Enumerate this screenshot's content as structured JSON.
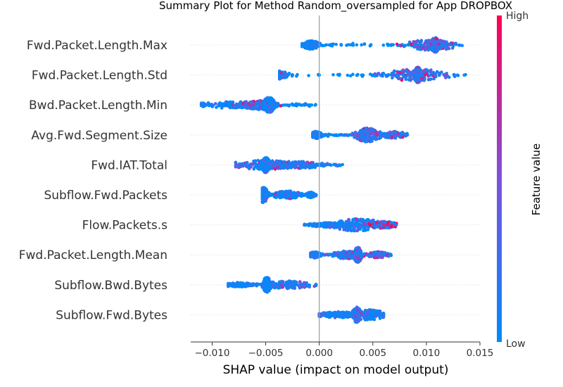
{
  "chart_data": {
    "type": "scatter",
    "subtype": "shap-summary-beeswarm",
    "title": "Summary Plot for Method Random_oversampled for App DROPBOX",
    "xlabel": "SHAP value (impact on model output)",
    "xlim": [
      -0.012,
      0.015
    ],
    "x_ticks": [
      -0.01,
      -0.005,
      0.0,
      0.005,
      0.01,
      0.015
    ],
    "x_tick_labels": [
      "−0.010",
      "−0.005",
      "0.000",
      "0.005",
      "0.010",
      "0.015"
    ],
    "colorbar": {
      "label": "Feature value",
      "high_label": "High",
      "low_label": "Low",
      "low_color": "#008afb",
      "high_color": "#ff0052"
    },
    "features": [
      {
        "name": "Fwd.Packet.Length.Max",
        "range": [
          -0.0016,
          0.0135
        ],
        "clusters": [
          {
            "x": -0.00075,
            "spread": 0.0004,
            "height": 0.55,
            "hue": 0.05
          },
          {
            "x": 0.0105,
            "spread": 0.0012,
            "height": 0.7,
            "hue": 0.5
          },
          {
            "x": 0.0108,
            "spread": 0.0002,
            "height": 1.0,
            "hue": 0.55
          }
        ]
      },
      {
        "name": "Fwd.Packet.Length.Std",
        "range": [
          -0.0037,
          0.0138
        ],
        "clusters": [
          {
            "x": -0.004,
            "spread": 0.0006,
            "height": 0.55,
            "hue": 0.05
          },
          {
            "x": 0.009,
            "spread": 0.0014,
            "height": 0.8,
            "hue": 0.55
          },
          {
            "x": 0.0092,
            "spread": 0.0002,
            "height": 1.0,
            "hue": 0.55
          }
        ]
      },
      {
        "name": "Bwd.Packet.Length.Min",
        "range": [
          -0.011,
          -0.0003
        ],
        "clusters": [
          {
            "x": -0.0075,
            "spread": 0.002,
            "height": 0.45,
            "hue": 0.05
          },
          {
            "x": -0.0055,
            "spread": 0.0008,
            "height": 0.6,
            "hue": 0.6
          },
          {
            "x": -0.0047,
            "spread": 0.0003,
            "height": 1.0,
            "hue": 0.05
          }
        ]
      },
      {
        "name": "Avg.Fwd.Segment.Size",
        "range": [
          -0.0006,
          0.0083
        ],
        "clusters": [
          {
            "x": -0.0003,
            "spread": 0.0003,
            "height": 0.45,
            "hue": 0.05
          },
          {
            "x": 0.0045,
            "spread": 0.0006,
            "height": 0.9,
            "hue": 0.55
          },
          {
            "x": 0.007,
            "spread": 0.0006,
            "height": 0.45,
            "hue": 0.65
          }
        ]
      },
      {
        "name": "Fwd.IAT.Total",
        "range": [
          -0.0078,
          0.0023
        ],
        "clusters": [
          {
            "x": -0.005,
            "spread": 0.0017,
            "height": 0.6,
            "hue": 0.35
          },
          {
            "x": -0.002,
            "spread": 0.0015,
            "height": 0.45,
            "hue": 0.4
          },
          {
            "x": -0.005,
            "spread": 0.0002,
            "height": 1.0,
            "hue": 0.05
          }
        ]
      },
      {
        "name": "Subflow.Fwd.Packets",
        "range": [
          -0.0053,
          -0.0003
        ],
        "clusters": [
          {
            "x": -0.0052,
            "spread": 0.0002,
            "height": 1.0,
            "hue": 0.05
          },
          {
            "x": -0.003,
            "spread": 0.0008,
            "height": 0.5,
            "hue": 0.1
          },
          {
            "x": -0.0008,
            "spread": 0.0002,
            "height": 0.35,
            "hue": 0.05
          }
        ]
      },
      {
        "name": "Flow.Packets.s",
        "range": [
          -0.0014,
          0.0072
        ],
        "clusters": [
          {
            "x": 0.001,
            "spread": 0.001,
            "height": 0.3,
            "hue": 0.05
          },
          {
            "x": 0.0035,
            "spread": 0.0013,
            "height": 0.8,
            "hue": 0.2
          },
          {
            "x": 0.006,
            "spread": 0.0007,
            "height": 0.45,
            "hue": 0.8
          }
        ]
      },
      {
        "name": "Fwd.Packet.Length.Mean",
        "range": [
          -0.0008,
          0.0067
        ],
        "clusters": [
          {
            "x": -0.0004,
            "spread": 0.0003,
            "height": 0.4,
            "hue": 0.05
          },
          {
            "x": 0.0025,
            "spread": 0.0007,
            "height": 0.5,
            "hue": 0.3
          },
          {
            "x": 0.0036,
            "spread": 0.0002,
            "height": 1.0,
            "hue": 0.55
          },
          {
            "x": 0.0055,
            "spread": 0.0005,
            "height": 0.4,
            "hue": 0.6
          }
        ]
      },
      {
        "name": "Subflow.Bwd.Bytes",
        "range": [
          -0.0085,
          -0.0003
        ],
        "clusters": [
          {
            "x": -0.0075,
            "spread": 0.0008,
            "height": 0.3,
            "hue": 0.05
          },
          {
            "x": -0.003,
            "spread": 0.0012,
            "height": 0.5,
            "hue": 0.3
          },
          {
            "x": -0.0049,
            "spread": 0.0002,
            "height": 1.0,
            "hue": 0.05
          }
        ]
      },
      {
        "name": "Subflow.Fwd.Bytes",
        "range": [
          0.0,
          0.006
        ],
        "clusters": [
          {
            "x": 0.002,
            "spread": 0.0012,
            "height": 0.4,
            "hue": 0.1
          },
          {
            "x": 0.0045,
            "spread": 0.0009,
            "height": 0.7,
            "hue": 0.2
          },
          {
            "x": 0.0035,
            "spread": 0.0002,
            "height": 1.0,
            "hue": 0.4
          }
        ]
      }
    ],
    "zero_line": 0.0,
    "grid": false
  }
}
